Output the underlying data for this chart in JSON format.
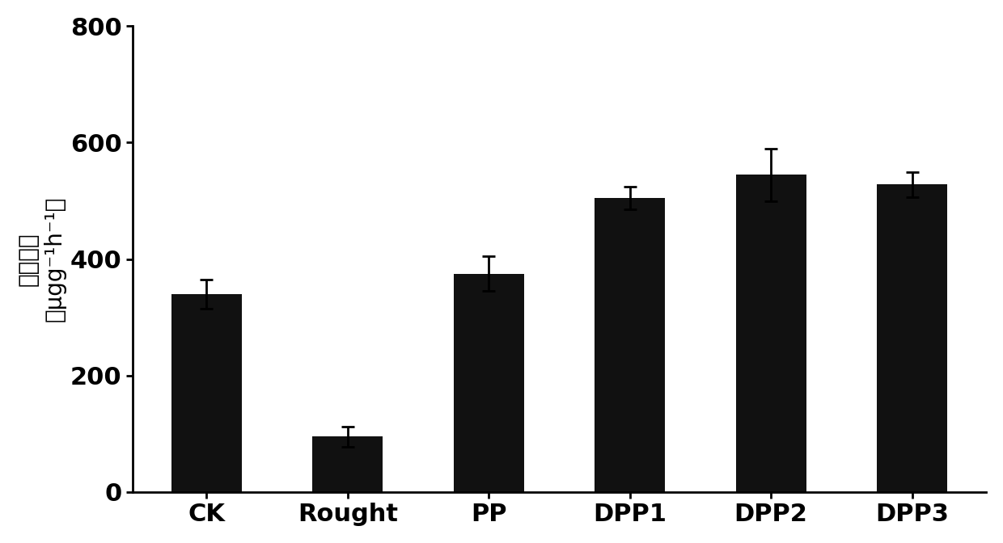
{
  "categories": [
    "CK",
    "Rought",
    "PP",
    "DPP1",
    "DPP2",
    "DPP3"
  ],
  "values": [
    340,
    95,
    375,
    505,
    545,
    528
  ],
  "errors": [
    25,
    18,
    30,
    20,
    45,
    22
  ],
  "bar_color": "#111111",
  "edge_color": "#111111",
  "ylabel_line1": "根系活力",
  "ylabel_line2": "（μgg⁻¹h⁻¹）",
  "ylim": [
    0,
    800
  ],
  "yticks": [
    0,
    200,
    400,
    600,
    800
  ],
  "background_color": "#ffffff",
  "bar_width": 0.5,
  "tick_fontsize": 22,
  "xtick_fontsize": 22
}
